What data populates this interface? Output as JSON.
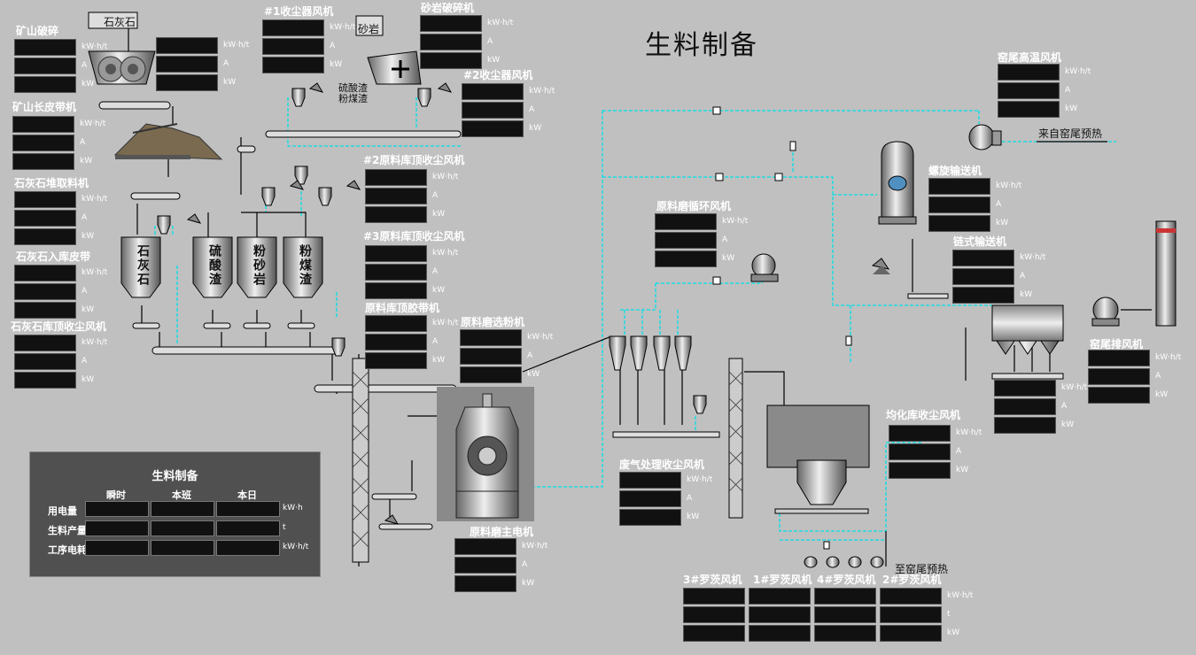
{
  "title": "生料制备",
  "units": {
    "kwht": "kW·h/t",
    "a": "A",
    "kw": "kW",
    "t": "t",
    "kwh": "kW·h"
  },
  "equipment_labels": {
    "mine_crush": "矿山破碎",
    "mine_belt": "矿山长皮带机",
    "limestone_stacker": "石灰石堆取料机",
    "limestone_belt": "石灰石入库皮带",
    "limestone_dust_fan": "石灰石库顶收尘风机",
    "dust_fan_1": "#1收尘器风机",
    "sandstone_crush": "砂岩破碎机",
    "dust_fan_2": "#2收尘器风机",
    "raw_top_fan_2": "#2原料库顶收尘风机",
    "raw_top_fan_3": "#3原料库顶收尘风机",
    "raw_top_belt": "原料库顶胶带机",
    "mill_separator_fan": "原料磨选粉机",
    "mill_circ_fan": "原料磨循环风机",
    "mill_main_motor": "原料磨主电机",
    "waste_gas_fan": "废气处理收尘风机",
    "kiln_tail_hot_fan": "窑尾高温风机",
    "screw_conveyor": "螺旋输送机",
    "chain_conveyor": "链式输送机",
    "kiln_tail_exhaust": "窑尾排风机",
    "homog_dust_fan": "均化库收尘风机",
    "roots_3": "3#罗茨风机",
    "roots_1": "1#罗茨风机",
    "roots_4": "4#罗茨风机",
    "roots_2": "2#罗茨风机"
  },
  "silo_labels": {
    "limestone": "石灰石",
    "sulfur_slag": "硫酸渣",
    "sandstone": "粉砂岩",
    "coal_slag": "粉煤渣"
  },
  "misc_labels": {
    "limestone_tag": "石灰石",
    "sandstone_tag": "砂岩",
    "sulfur_coal_tag": "硫酸渣粉煤渣",
    "from_kiln_preheat": "来自窑尾预热",
    "to_kiln_preheat": "至窑尾预热"
  },
  "summary": {
    "title": "生料制备",
    "col_headers": [
      "瞬时",
      "本班",
      "本日"
    ],
    "rows": [
      {
        "label": "用电量",
        "unit": "kW·h"
      },
      {
        "label": "生料产量",
        "unit": "t"
      },
      {
        "label": "工序电耗",
        "unit": "kW·h/t"
      }
    ]
  },
  "colors": {
    "background": "#c0c0c0",
    "pipe": "#00ffff",
    "line": "#000000",
    "display_bg": "#111111"
  }
}
